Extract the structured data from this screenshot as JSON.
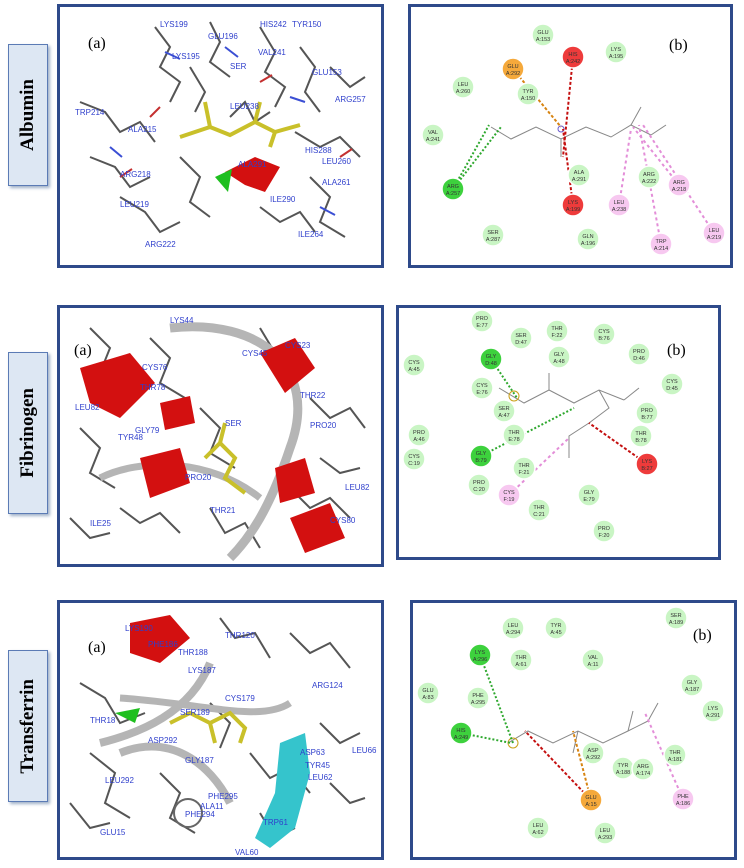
{
  "rows": [
    {
      "name": "Albumin",
      "panel_a_label": "(a)",
      "panel_b_label": "(b)",
      "residues_3d": [
        "LYS199",
        "GLU196",
        "HIS242",
        "TYR150",
        "LYS195",
        "VAL241",
        "SER",
        "GLU153",
        "ARG257",
        "LEU238",
        "TRP214",
        "ALA215",
        "ARG218",
        "ALA291",
        "HIS288",
        "LEU260",
        "ALA261",
        "LEU219",
        "ILE290",
        "ARG222",
        "ILE264"
      ],
      "nodes_2d": [
        {
          "l1": "GLU",
          "l2": "A:153",
          "type": "vdw"
        },
        {
          "l1": "HIS",
          "l2": "A:242",
          "type": "unfav"
        },
        {
          "l1": "LYS",
          "l2": "A:195",
          "type": "vdw"
        },
        {
          "l1": "GLU",
          "l2": "A:292",
          "type": "attr"
        },
        {
          "l1": "LEU",
          "l2": "A:260",
          "type": "vdw"
        },
        {
          "l1": "TYR",
          "l2": "A:150",
          "type": "vdw"
        },
        {
          "l1": "VAL",
          "l2": "A:241",
          "type": "vdw"
        },
        {
          "l1": "ARG",
          "l2": "A:257",
          "type": "hbond"
        },
        {
          "l1": "ALA",
          "l2": "A:291",
          "type": "vdw"
        },
        {
          "l1": "LYS",
          "l2": "A:199",
          "type": "unfav"
        },
        {
          "l1": "ARG",
          "l2": "A:222",
          "type": "vdw"
        },
        {
          "l1": "ARG",
          "l2": "A:218",
          "type": "alkyl"
        },
        {
          "l1": "LEU",
          "l2": "A:238",
          "type": "alkyl"
        },
        {
          "l1": "SER",
          "l2": "A:287",
          "type": "vdw"
        },
        {
          "l1": "GLN",
          "l2": "A:196",
          "type": "vdw"
        },
        {
          "l1": "TRP",
          "l2": "A:214",
          "type": "alkyl"
        },
        {
          "l1": "LEU",
          "l2": "A:219",
          "type": "alkyl"
        }
      ]
    },
    {
      "name": "Fibrinogen",
      "panel_a_label": "(a)",
      "panel_b_label": "(b)",
      "residues_3d": [
        "LYS44",
        "CYS45",
        "CYS23",
        "CYS76",
        "THR78",
        "THR22",
        "LEU82",
        "GLY79",
        "SER",
        "PRO20",
        "TYR48",
        "LEU82",
        "PRO20",
        "THR21",
        "ILE25",
        "CYS80"
      ],
      "nodes_2d": [
        {
          "l1": "PRO",
          "l2": "E:77",
          "type": "vdw"
        },
        {
          "l1": "SER",
          "l2": "D:47",
          "type": "vdw"
        },
        {
          "l1": "THR",
          "l2": "F:22",
          "type": "vdw"
        },
        {
          "l1": "GLY",
          "l2": "A:48",
          "type": "vdw"
        },
        {
          "l1": "CYS",
          "l2": "B:76",
          "type": "vdw"
        },
        {
          "l1": "GLY",
          "l2": "D:48",
          "type": "hbond"
        },
        {
          "l1": "PRO",
          "l2": "D:46",
          "type": "vdw"
        },
        {
          "l1": "CYS",
          "l2": "A:45",
          "type": "vdw"
        },
        {
          "l1": "CYS",
          "l2": "E:76",
          "type": "vdw"
        },
        {
          "l1": "CYS",
          "l2": "D:45",
          "type": "vdw"
        },
        {
          "l1": "SER",
          "l2": "A:47",
          "type": "vdw"
        },
        {
          "l1": "PRO",
          "l2": "B:77",
          "type": "vdw"
        },
        {
          "l1": "PRO",
          "l2": "A:46",
          "type": "vdw"
        },
        {
          "l1": "THR",
          "l2": "E:78",
          "type": "vdw"
        },
        {
          "l1": "THR",
          "l2": "B:78",
          "type": "vdw"
        },
        {
          "l1": "GLY",
          "l2": "B:79",
          "type": "hbond"
        },
        {
          "l1": "CYS",
          "l2": "C:19",
          "type": "vdw"
        },
        {
          "l1": "LYS",
          "l2": "B:27",
          "type": "unfav"
        },
        {
          "l1": "THR",
          "l2": "F:21",
          "type": "vdw"
        },
        {
          "l1": "PRO",
          "l2": "C:20",
          "type": "vdw"
        },
        {
          "l1": "CYS",
          "l2": "F:19",
          "type": "alkyl"
        },
        {
          "l1": "GLY",
          "l2": "E:79",
          "type": "vdw"
        },
        {
          "l1": "THR",
          "l2": "C:21",
          "type": "vdw"
        },
        {
          "l1": "PRO",
          "l2": "F:20",
          "type": "vdw"
        }
      ]
    },
    {
      "name": "Transferrin",
      "panel_a_label": "(a)",
      "panel_b_label": "(b)",
      "residues_3d": [
        "LYS190",
        "PHE186",
        "THR188",
        "THR120",
        "LYS187",
        "CYS179",
        "ARG124",
        "THR18",
        "SER189",
        "ASP292",
        "GLY187",
        "LEU66",
        "ASP63",
        "LEU292",
        "TYR45",
        "LEU62",
        "PHE295",
        "ALA11",
        "PHE294",
        "GLU15",
        "TRP61",
        "VAL60"
      ],
      "nodes_2d": [
        {
          "l1": "LEU",
          "l2": "A:294",
          "type": "vdw"
        },
        {
          "l1": "TYR",
          "l2": "A:45",
          "type": "vdw"
        },
        {
          "l1": "SER",
          "l2": "A:189",
          "type": "vdw"
        },
        {
          "l1": "LYS",
          "l2": "A:296",
          "type": "hbond"
        },
        {
          "l1": "THR",
          "l2": "A:61",
          "type": "vdw"
        },
        {
          "l1": "VAL",
          "l2": "A:11",
          "type": "vdw"
        },
        {
          "l1": "GLY",
          "l2": "A:187",
          "type": "vdw"
        },
        {
          "l1": "GLU",
          "l2": "A:83",
          "type": "vdw"
        },
        {
          "l1": "PHE",
          "l2": "A:295",
          "type": "vdw"
        },
        {
          "l1": "LYS",
          "l2": "A:291",
          "type": "vdw"
        },
        {
          "l1": "HIS",
          "l2": "A:249",
          "type": "hbond"
        },
        {
          "l1": "ASP",
          "l2": "A:292",
          "type": "vdw"
        },
        {
          "l1": "THR",
          "l2": "A:181",
          "type": "vdw"
        },
        {
          "l1": "TYR",
          "l2": "A:188",
          "type": "vdw"
        },
        {
          "l1": "ARG",
          "l2": "A:174",
          "type": "vdw"
        },
        {
          "l1": "GLU",
          "l2": "A:15",
          "type": "attr"
        },
        {
          "l1": "PHE",
          "l2": "A:186",
          "type": "alkyl"
        },
        {
          "l1": "LEU",
          "l2": "A:62",
          "type": "vdw"
        },
        {
          "l1": "LEU",
          "l2": "A:293",
          "type": "vdw"
        }
      ]
    }
  ],
  "colors": {
    "vdw": "#c9f5c4",
    "hbond": "#3dd13d",
    "unfav": "#ee3b3b",
    "attr": "#f5a93b",
    "alkyl": "#f7c8f0",
    "frame": "#2e4a8a",
    "label_bg": "#dde7f3",
    "residue_text": "#2f3fcc",
    "helix": "#d31010",
    "ligand": "#c9c02a"
  }
}
